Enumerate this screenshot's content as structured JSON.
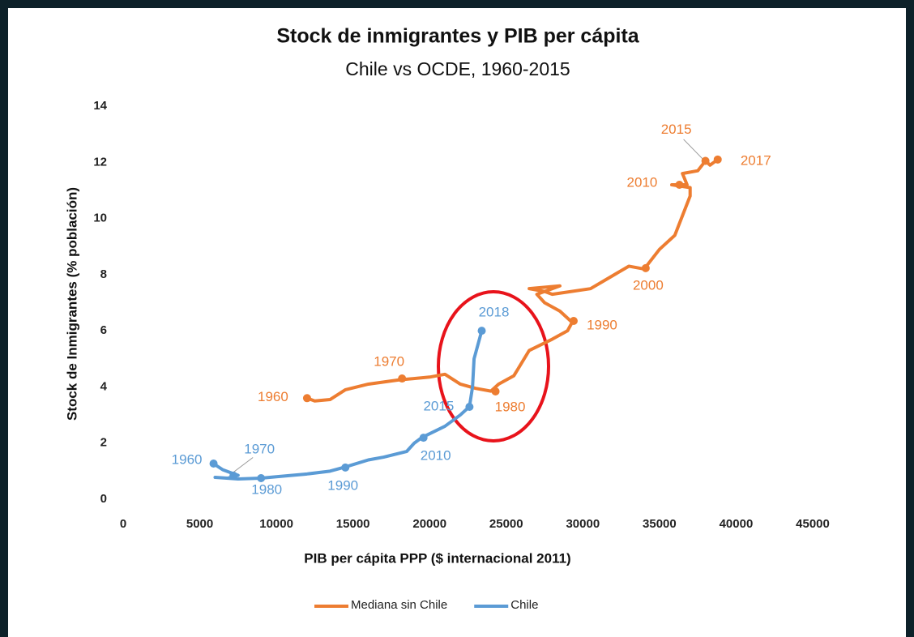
{
  "chart_data": {
    "type": "line",
    "title": "Stock de inmigrantes y PIB per cápita",
    "subtitle": "Chile vs OCDE, 1960-2015",
    "x_label": "PIB per cápita PPP ($ internacional 2011)",
    "y_label": "Stock de Inmigrantes (% población)",
    "xlim": [
      0,
      45000
    ],
    "xticks": [
      0,
      5000,
      10000,
      15000,
      20000,
      25000,
      30000,
      35000,
      40000,
      45000
    ],
    "ylim": [
      0,
      14
    ],
    "yticks": [
      0,
      2,
      4,
      6,
      8,
      10,
      12,
      14
    ],
    "legend": "bottom",
    "series": [
      {
        "name": "Mediana sin Chile",
        "color": "#ed7d31",
        "x": [
          12000,
          12500,
          13500,
          14500,
          16000,
          18000,
          20000,
          21000,
          22000,
          23000,
          24000,
          24500,
          25500,
          26500,
          28000,
          29000,
          29300,
          28500,
          27500,
          27000,
          28500,
          26500,
          27500,
          28000,
          30500,
          33000,
          34000,
          35000,
          36000,
          37000,
          37000,
          35800,
          36800,
          36500,
          37500,
          38000,
          38300,
          38800
        ],
        "values": [
          3.6,
          3.5,
          3.55,
          3.9,
          4.1,
          4.25,
          4.35,
          4.45,
          4.1,
          3.95,
          3.85,
          4.1,
          4.4,
          5.3,
          5.7,
          6.0,
          6.3,
          6.7,
          7.0,
          7.3,
          7.6,
          7.5,
          7.4,
          7.3,
          7.5,
          8.3,
          8.2,
          8.9,
          9.4,
          10.8,
          11.1,
          11.2,
          11.2,
          11.6,
          11.7,
          12.05,
          11.9,
          12.1
        ]
      },
      {
        "name": "Chile",
        "color": "#5b9bd5",
        "x": [
          5800,
          6500,
          7000,
          7500,
          7200,
          6800,
          6000,
          7500,
          9000,
          10000,
          12000,
          13500,
          14500,
          16000,
          17000,
          18500,
          19000,
          19500,
          21000,
          22000,
          22600,
          22800,
          22900,
          23400
        ],
        "values": [
          1.3,
          1.05,
          0.95,
          0.85,
          0.8,
          0.75,
          0.78,
          0.72,
          0.75,
          0.8,
          0.9,
          1.0,
          1.15,
          1.4,
          1.5,
          1.7,
          2.0,
          2.2,
          2.6,
          3.0,
          3.3,
          4.0,
          5.0,
          6.0
        ]
      }
    ],
    "annotations": [
      {
        "text": "1960",
        "series": 0,
        "x": 12000,
        "y": 3.6
      },
      {
        "text": "1970",
        "series": 0,
        "x": 18200,
        "y": 4.3
      },
      {
        "text": "1980",
        "series": 0,
        "x": 24300,
        "y": 3.84
      },
      {
        "text": "1990",
        "series": 0,
        "x": 29400,
        "y": 6.35
      },
      {
        "text": "2000",
        "series": 0,
        "x": 34100,
        "y": 8.23
      },
      {
        "text": "2010",
        "series": 0,
        "x": 36300,
        "y": 11.2
      },
      {
        "text": "2015",
        "series": 0,
        "x": 38000,
        "y": 12.05
      },
      {
        "text": "2017",
        "series": 0,
        "x": 38800,
        "y": 12.1
      },
      {
        "text": "1960",
        "series": 1,
        "x": 5900,
        "y": 1.27
      },
      {
        "text": "1970",
        "series": 1,
        "x": 7200,
        "y": 0.84
      },
      {
        "text": "1980",
        "series": 1,
        "x": 9000,
        "y": 0.75
      },
      {
        "text": "1990",
        "series": 1,
        "x": 14500,
        "y": 1.13
      },
      {
        "text": "2010",
        "series": 1,
        "x": 19600,
        "y": 2.19
      },
      {
        "text": "2015",
        "series": 1,
        "x": 22600,
        "y": 3.29
      },
      {
        "text": "2018",
        "series": 1,
        "x": 23400,
        "y": 6.0
      }
    ]
  }
}
